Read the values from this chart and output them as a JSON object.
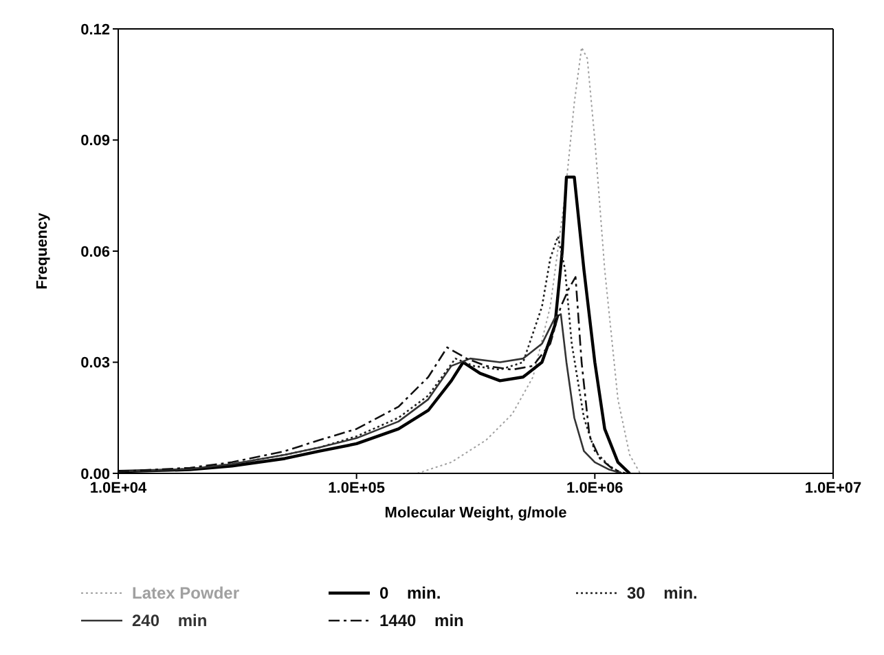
{
  "chart_data": {
    "type": "line",
    "xlabel": "Molecular Weight, g/mole",
    "ylabel": "Frequency",
    "log": "x",
    "xlim": [
      10000,
      10000000
    ],
    "xticks": [
      {
        "value": 10000,
        "label": "1.0E+04"
      },
      {
        "value": 100000,
        "label": "1.0E+05"
      },
      {
        "value": 1000000,
        "label": "1.0E+06"
      },
      {
        "value": 10000000,
        "label": "1.0E+07"
      }
    ],
    "ylim": [
      0,
      0.12
    ],
    "yticks": [
      {
        "value": 0,
        "label": "0.00"
      },
      0.03,
      0.06,
      0.09,
      0.12
    ],
    "legend": "bottom",
    "marker": "none",
    "series": [
      {
        "name": "Latex Powder",
        "color": "#a0a0a0",
        "line_style": "dotted",
        "x": [
          180000,
          250000,
          350000,
          450000,
          550000,
          650000,
          750000,
          820000,
          880000,
          930000,
          1000000,
          1100000,
          1250000,
          1400000,
          1550000
        ],
        "values": [
          0,
          0.003,
          0.009,
          0.016,
          0.026,
          0.045,
          0.075,
          0.1,
          0.115,
          0.112,
          0.09,
          0.055,
          0.02,
          0.005,
          0
        ]
      },
      {
        "name": "0    min.",
        "color": "#000000",
        "line_style": "solid",
        "x": [
          10000,
          20000,
          30000,
          50000,
          70000,
          100000,
          150000,
          200000,
          250000,
          280000,
          330000,
          400000,
          500000,
          600000,
          680000,
          730000,
          760000,
          820000,
          900000,
          1000000,
          1100000,
          1250000,
          1400000
        ],
        "values": [
          0.0005,
          0.001,
          0.002,
          0.004,
          0.006,
          0.008,
          0.012,
          0.017,
          0.025,
          0.03,
          0.027,
          0.025,
          0.026,
          0.03,
          0.04,
          0.06,
          0.08,
          0.08,
          0.055,
          0.03,
          0.012,
          0.003,
          0
        ]
      },
      {
        "name": "30    min.",
        "color": "#202020",
        "line_style": "dotted",
        "x": [
          10000,
          20000,
          30000,
          50000,
          70000,
          100000,
          150000,
          200000,
          260000,
          310000,
          400000,
          500000,
          600000,
          650000,
          700000,
          750000,
          800000,
          900000,
          1000000,
          1150000,
          1300000
        ],
        "values": [
          0.0005,
          0.0012,
          0.0025,
          0.005,
          0.007,
          0.01,
          0.015,
          0.021,
          0.031,
          0.029,
          0.028,
          0.03,
          0.045,
          0.058,
          0.064,
          0.055,
          0.035,
          0.015,
          0.006,
          0.002,
          0
        ]
      },
      {
        "name": "240    min",
        "color": "#333333",
        "line_style": "solid",
        "x": [
          10000,
          20000,
          30000,
          50000,
          70000,
          100000,
          150000,
          200000,
          250000,
          300000,
          400000,
          500000,
          600000,
          680000,
          720000,
          760000,
          820000,
          900000,
          1000000,
          1150000,
          1300000
        ],
        "values": [
          0.0005,
          0.0012,
          0.0025,
          0.005,
          0.007,
          0.0095,
          0.014,
          0.02,
          0.029,
          0.031,
          0.03,
          0.031,
          0.035,
          0.042,
          0.043,
          0.03,
          0.015,
          0.006,
          0.003,
          0.001,
          0
        ]
      },
      {
        "name": "1440    min",
        "color": "#111111",
        "line_style": "dashed",
        "x": [
          10000,
          20000,
          30000,
          50000,
          70000,
          100000,
          150000,
          200000,
          240000,
          290000,
          350000,
          450000,
          550000,
          650000,
          720000,
          780000,
          830000,
          880000,
          950000,
          1050000,
          1200000,
          1350000
        ],
        "values": [
          0.0005,
          0.0015,
          0.003,
          0.006,
          0.009,
          0.012,
          0.018,
          0.026,
          0.034,
          0.031,
          0.029,
          0.028,
          0.029,
          0.035,
          0.045,
          0.05,
          0.053,
          0.03,
          0.01,
          0.004,
          0.001,
          0
        ]
      }
    ]
  }
}
